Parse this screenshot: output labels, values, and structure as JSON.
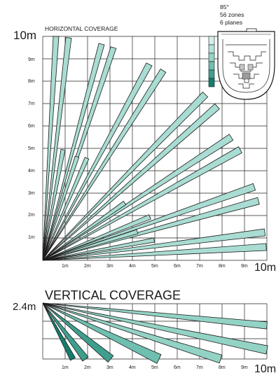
{
  "horizontal": {
    "title": "HORIZONTAL COVERAGE",
    "y_max_label": "10m",
    "x_max_label": "10m",
    "y_ticks": [
      "1m",
      "2m",
      "3m",
      "4m",
      "5m",
      "6m",
      "7m",
      "8m",
      "9m"
    ],
    "x_ticks": [
      "1m",
      "2m",
      "3m",
      "4m",
      "5m",
      "6m",
      "7m",
      "8m",
      "9m"
    ]
  },
  "spec": {
    "angle": "85°",
    "zones": "56 zones",
    "planes": "6 planes"
  },
  "vertical": {
    "title": "VERTICAL COVERAGE",
    "height_label": "2.4m",
    "x_max_label": "10m",
    "x_ticks": [
      "1m",
      "2m",
      "3m",
      "4m",
      "5m",
      "6m",
      "7m",
      "8m",
      "9m"
    ]
  },
  "colors": {
    "beam_fill": "#a9dcd2",
    "beam_stroke": "#1b1b1b",
    "grid": "#222222",
    "plane_shades": [
      "#d4efe9",
      "#b4e2d9",
      "#93d3c5",
      "#6fbfb0",
      "#3f9f8e",
      "#137f6d"
    ]
  }
}
